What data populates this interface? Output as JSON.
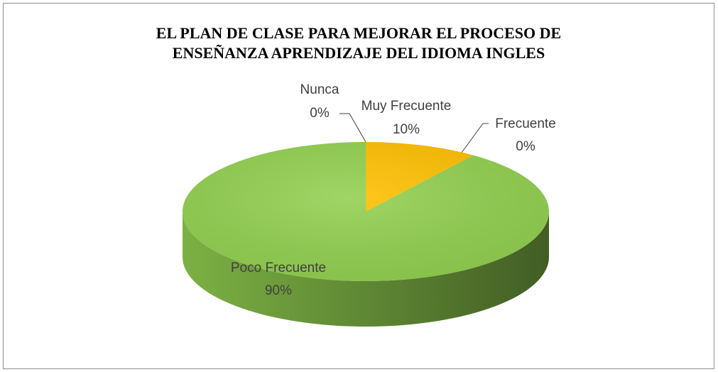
{
  "chart_data": {
    "type": "pie",
    "title": [
      "EL PLAN DE CLASE PARA MEJORAR EL PROCESO DE",
      "ENSEÑANZA APRENDIZAJE DEL IDIOMA INGLES"
    ],
    "categories": [
      "Muy Frecuente",
      "Frecuente",
      "Poco Frecuente",
      "Nunca"
    ],
    "values": [
      10,
      0,
      90,
      0
    ],
    "value_labels": [
      "10%",
      "0%",
      "90%",
      "0%"
    ],
    "colors": [
      "#FFC000",
      "#A5A5A5",
      "#92D050",
      "#4472C4"
    ]
  }
}
